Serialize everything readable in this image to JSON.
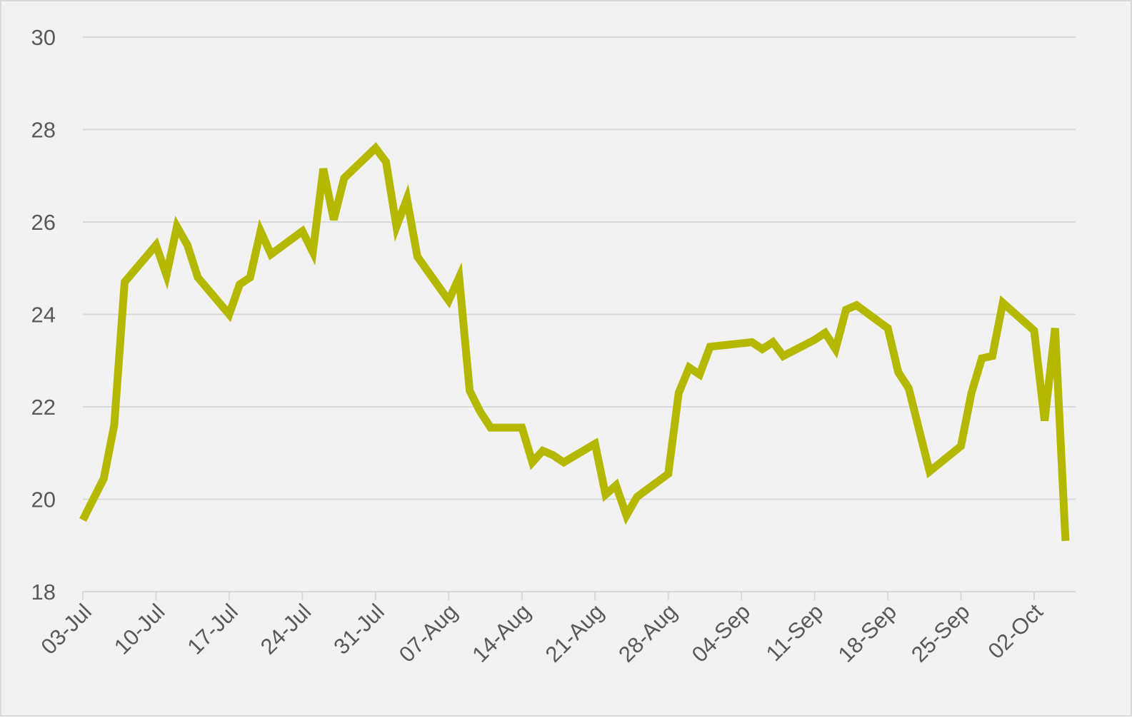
{
  "chart_data": {
    "type": "line",
    "title": "",
    "xlabel": "",
    "ylabel": "",
    "ylim": [
      18,
      30
    ],
    "yticks": [
      18,
      20,
      22,
      24,
      26,
      28,
      30
    ],
    "grid": true,
    "line_color": "#b5b800",
    "xlim": [
      "2023-07-03",
      "2023-10-08"
    ],
    "xticks": [
      {
        "date": "2023-07-03",
        "label": "03-Jul"
      },
      {
        "date": "2023-07-10",
        "label": "10-Jul"
      },
      {
        "date": "2023-07-17",
        "label": "17-Jul"
      },
      {
        "date": "2023-07-24",
        "label": "24-Jul"
      },
      {
        "date": "2023-07-31",
        "label": "31-Jul"
      },
      {
        "date": "2023-08-07",
        "label": "07-Aug"
      },
      {
        "date": "2023-08-14",
        "label": "14-Aug"
      },
      {
        "date": "2023-08-21",
        "label": "21-Aug"
      },
      {
        "date": "2023-08-28",
        "label": "28-Aug"
      },
      {
        "date": "2023-09-04",
        "label": "04-Sep"
      },
      {
        "date": "2023-09-11",
        "label": "11-Sep"
      },
      {
        "date": "2023-09-18",
        "label": "18-Sep"
      },
      {
        "date": "2023-09-25",
        "label": "25-Sep"
      },
      {
        "date": "2023-10-02",
        "label": "02-Oct"
      }
    ],
    "series": [
      {
        "points": [
          [
            "2023-07-03",
            19.55
          ],
          [
            "2023-07-05",
            20.45
          ],
          [
            "2023-07-06",
            21.6
          ],
          [
            "2023-07-07",
            24.7
          ],
          [
            "2023-07-10",
            25.5
          ],
          [
            "2023-07-11",
            24.85
          ],
          [
            "2023-07-12",
            25.9
          ],
          [
            "2023-07-13",
            25.5
          ],
          [
            "2023-07-14",
            24.8
          ],
          [
            "2023-07-17",
            24.0
          ],
          [
            "2023-07-18",
            24.65
          ],
          [
            "2023-07-19",
            24.8
          ],
          [
            "2023-07-20",
            25.8
          ],
          [
            "2023-07-21",
            25.3
          ],
          [
            "2023-07-24",
            25.8
          ],
          [
            "2023-07-25",
            25.35
          ],
          [
            "2023-07-26",
            27.15
          ],
          [
            "2023-07-27",
            26.05
          ],
          [
            "2023-07-28",
            26.95
          ],
          [
            "2023-07-31",
            27.6
          ],
          [
            "2023-08-01",
            27.3
          ],
          [
            "2023-08-02",
            25.9
          ],
          [
            "2023-08-03",
            26.5
          ],
          [
            "2023-08-04",
            25.25
          ],
          [
            "2023-08-07",
            24.3
          ],
          [
            "2023-08-08",
            24.8
          ],
          [
            "2023-08-09",
            22.35
          ],
          [
            "2023-08-10",
            21.9
          ],
          [
            "2023-08-11",
            21.55
          ],
          [
            "2023-08-14",
            21.55
          ],
          [
            "2023-08-15",
            20.8
          ],
          [
            "2023-08-16",
            21.05
          ],
          [
            "2023-08-17",
            20.95
          ],
          [
            "2023-08-18",
            20.8
          ],
          [
            "2023-08-21",
            21.2
          ],
          [
            "2023-08-22",
            20.1
          ],
          [
            "2023-08-23",
            20.3
          ],
          [
            "2023-08-24",
            19.65
          ],
          [
            "2023-08-25",
            20.05
          ],
          [
            "2023-08-28",
            20.55
          ],
          [
            "2023-08-29",
            22.3
          ],
          [
            "2023-08-30",
            22.85
          ],
          [
            "2023-08-31",
            22.7
          ],
          [
            "2023-09-01",
            23.3
          ],
          [
            "2023-09-05",
            23.4
          ],
          [
            "2023-09-06",
            23.25
          ],
          [
            "2023-09-07",
            23.4
          ],
          [
            "2023-09-08",
            23.1
          ],
          [
            "2023-09-11",
            23.45
          ],
          [
            "2023-09-12",
            23.6
          ],
          [
            "2023-09-13",
            23.25
          ],
          [
            "2023-09-14",
            24.1
          ],
          [
            "2023-09-15",
            24.2
          ],
          [
            "2023-09-18",
            23.7
          ],
          [
            "2023-09-19",
            22.75
          ],
          [
            "2023-09-20",
            22.4
          ],
          [
            "2023-09-21",
            21.5
          ],
          [
            "2023-09-22",
            20.6
          ],
          [
            "2023-09-25",
            21.15
          ],
          [
            "2023-09-26",
            22.3
          ],
          [
            "2023-09-27",
            23.05
          ],
          [
            "2023-09-28",
            23.1
          ],
          [
            "2023-09-29",
            24.25
          ],
          [
            "2023-10-02",
            23.65
          ],
          [
            "2023-10-03",
            21.7
          ],
          [
            "2023-10-04",
            23.7
          ],
          [
            "2023-10-05",
            19.1
          ]
        ]
      }
    ]
  }
}
